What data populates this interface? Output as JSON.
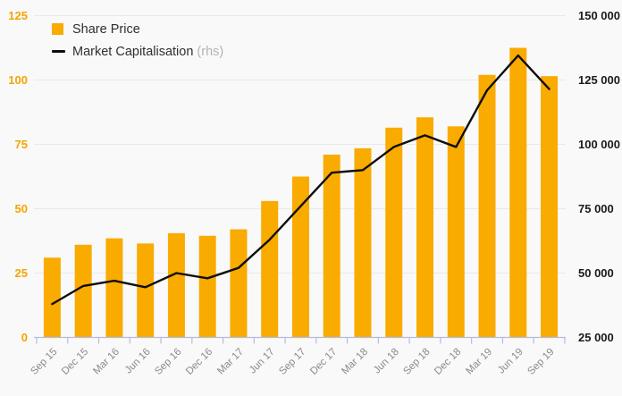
{
  "legend": {
    "share_price": "Share Price",
    "market_cap": "Market Capitalisation",
    "market_cap_suffix": " (rhs)"
  },
  "colors": {
    "bar": "#F9AB00",
    "line": "#0d0d0d",
    "left_axis_text": "#F5A400",
    "right_axis_text": "#1a1a1a",
    "x_axis_text": "#8a8a8a",
    "grid": "#e9e9e9",
    "axis_line": "#b6bddc",
    "background": "#f9f9f9",
    "legend_text": "#2f2f2f",
    "legend_rhs_text": "#b3b3b3"
  },
  "chart_data": {
    "type": "bar+line combo",
    "categories": [
      "Sep 15",
      "Dec 15",
      "Mar 16",
      "Jun 16",
      "Sep 16",
      "Dec 16",
      "Mar 17",
      "Jun 17",
      "Sep 17",
      "Dec 17",
      "Mar 18",
      "Jun 18",
      "Sep 18",
      "Dec 18",
      "Mar 19",
      "Jun 19",
      "Sep 19"
    ],
    "series": [
      {
        "name": "Share Price",
        "type": "bar",
        "axis": "left",
        "values": [
          31,
          36,
          38.5,
          36.5,
          40.5,
          39.5,
          42,
          53,
          62.5,
          71,
          73.5,
          81.5,
          85.5,
          82,
          102,
          112.5,
          101.5
        ]
      },
      {
        "name": "Market Capitalisation (rhs)",
        "type": "line",
        "axis": "right",
        "values": [
          38000,
          45000,
          47000,
          44500,
          50000,
          48000,
          52000,
          63000,
          76000,
          89000,
          90000,
          99000,
          103500,
          99000,
          121000,
          134500,
          121500
        ]
      }
    ],
    "left_axis": {
      "min": 0,
      "max": 125,
      "step": 25,
      "tick_labels": [
        "0",
        "25",
        "50",
        "75",
        "100",
        "125"
      ]
    },
    "right_axis": {
      "min": 25000,
      "max": 150000,
      "step": 25000,
      "tick_labels": [
        "25 000",
        "50 000",
        "75 000",
        "100 000",
        "125 000",
        "150 000"
      ]
    },
    "grid": "horizontal only",
    "legend_position": "top-left inside plot",
    "x_tick_label_rotation": -45
  }
}
